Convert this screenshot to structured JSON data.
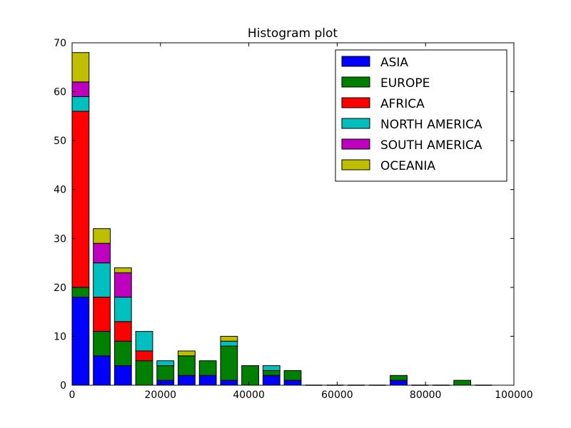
{
  "chart_data": {
    "type": "bar",
    "stacked": true,
    "title": "Histogram plot",
    "xlabel": "",
    "ylabel": "",
    "xlim": [
      0,
      100000
    ],
    "ylim": [
      0,
      70
    ],
    "x_ticks": [
      0,
      20000,
      40000,
      60000,
      80000,
      100000
    ],
    "y_ticks": [
      0,
      10,
      20,
      30,
      40,
      50,
      60,
      70
    ],
    "bin_width": 4800,
    "bin_starts": [
      0,
      4800,
      9600,
      14400,
      19200,
      24000,
      28800,
      33600,
      38400,
      43200,
      48000,
      52800,
      57600,
      62400,
      67200,
      72000,
      76800,
      81600,
      86400,
      91200
    ],
    "grid": false,
    "legend_position": "top-right",
    "series": [
      {
        "name": "ASIA",
        "color": "#0000ff",
        "values": [
          18,
          6,
          4,
          0,
          1,
          2,
          2,
          1,
          0,
          2,
          1,
          0,
          0,
          0,
          0,
          1,
          0,
          0,
          0,
          0
        ]
      },
      {
        "name": "EUROPE",
        "color": "#008000",
        "values": [
          2,
          5,
          5,
          5,
          3,
          4,
          3,
          7,
          4,
          1,
          2,
          0,
          0,
          0,
          0,
          1,
          0,
          0,
          1,
          0
        ]
      },
      {
        "name": "AFRICA",
        "color": "#ff0000",
        "values": [
          36,
          7,
          4,
          2,
          0,
          0,
          0,
          0,
          0,
          0,
          0,
          0,
          0,
          0,
          0,
          0,
          0,
          0,
          0,
          0
        ]
      },
      {
        "name": "NORTH AMERICA",
        "color": "#00bfbf",
        "values": [
          3,
          7,
          5,
          4,
          1,
          0,
          0,
          1,
          0,
          1,
          0,
          0,
          0,
          0,
          0,
          0,
          0,
          0,
          0,
          0
        ]
      },
      {
        "name": "SOUTH AMERICA",
        "color": "#bf00bf",
        "values": [
          3,
          4,
          5,
          0,
          0,
          0,
          0,
          0,
          0,
          0,
          0,
          0,
          0,
          0,
          0,
          0,
          0,
          0,
          0,
          0
        ]
      },
      {
        "name": "OCEANIA",
        "color": "#bfbf00",
        "values": [
          6,
          3,
          1,
          0,
          0,
          1,
          0,
          1,
          0,
          0,
          0,
          0,
          0,
          0,
          0,
          0,
          0,
          0,
          0,
          0
        ]
      }
    ]
  }
}
